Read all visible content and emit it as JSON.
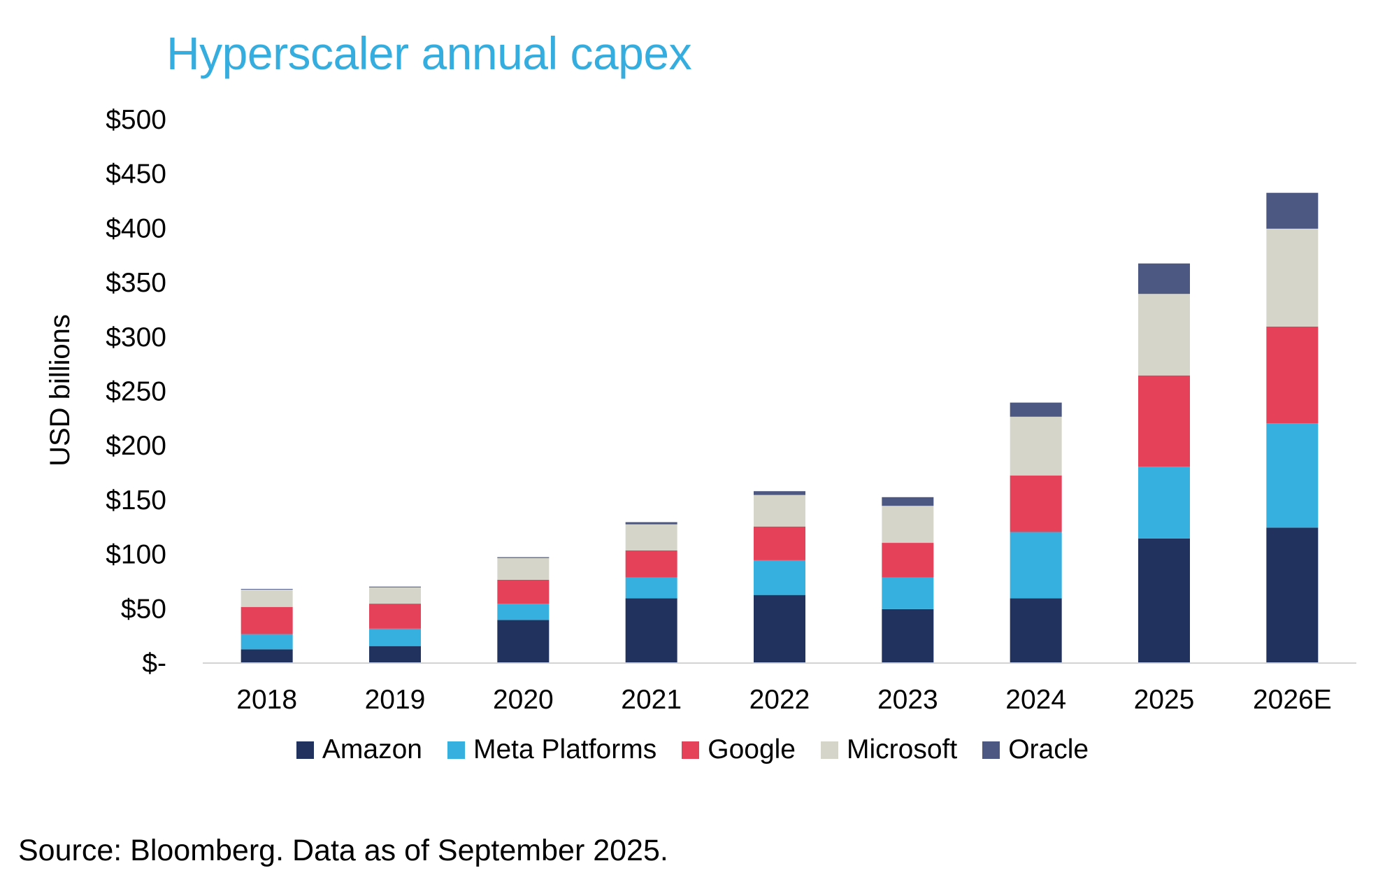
{
  "title": "Hyperscaler annual capex",
  "source": "Source: Bloomberg. Data as of September 2025.",
  "colors": {
    "title": "#35AEDF",
    "axis_line": "#D3D3D3",
    "text": "#000000"
  },
  "chart_data": {
    "type": "bar",
    "stacked": true,
    "title": "Hyperscaler annual capex",
    "xlabel": "",
    "ylabel": "USD billions",
    "ylim": [
      0,
      500
    ],
    "yticks": [
      0,
      50,
      100,
      150,
      200,
      250,
      300,
      350,
      400,
      450,
      500
    ],
    "ytick_labels": [
      "$-",
      "$50",
      "$100",
      "$150",
      "$200",
      "$250",
      "$300",
      "$350",
      "$400",
      "$450",
      "$500"
    ],
    "grid": false,
    "legend_position": "bottom",
    "categories": [
      "2018",
      "2019",
      "2020",
      "2021",
      "2022",
      "2023",
      "2024",
      "2025",
      "2026E"
    ],
    "series": [
      {
        "name": "Amazon",
        "color": "#22325F",
        "values": [
          12,
          15,
          39,
          59,
          62,
          49,
          59,
          114,
          124
        ]
      },
      {
        "name": "Meta Platforms",
        "color": "#35B0DF",
        "values": [
          14,
          16,
          15,
          19,
          32,
          29,
          61,
          66,
          96
        ]
      },
      {
        "name": "Google",
        "color": "#E5425A",
        "values": [
          25,
          23,
          22,
          25,
          31,
          32,
          52,
          84,
          89
        ]
      },
      {
        "name": "Microsoft",
        "color": "#D6D5CA",
        "values": [
          16,
          15,
          20,
          24,
          29,
          34,
          54,
          75,
          90
        ]
      },
      {
        "name": "Oracle",
        "color": "#4C5882",
        "values": [
          0.6,
          0.7,
          0.8,
          2,
          3.5,
          8,
          13,
          28,
          33
        ]
      }
    ]
  }
}
